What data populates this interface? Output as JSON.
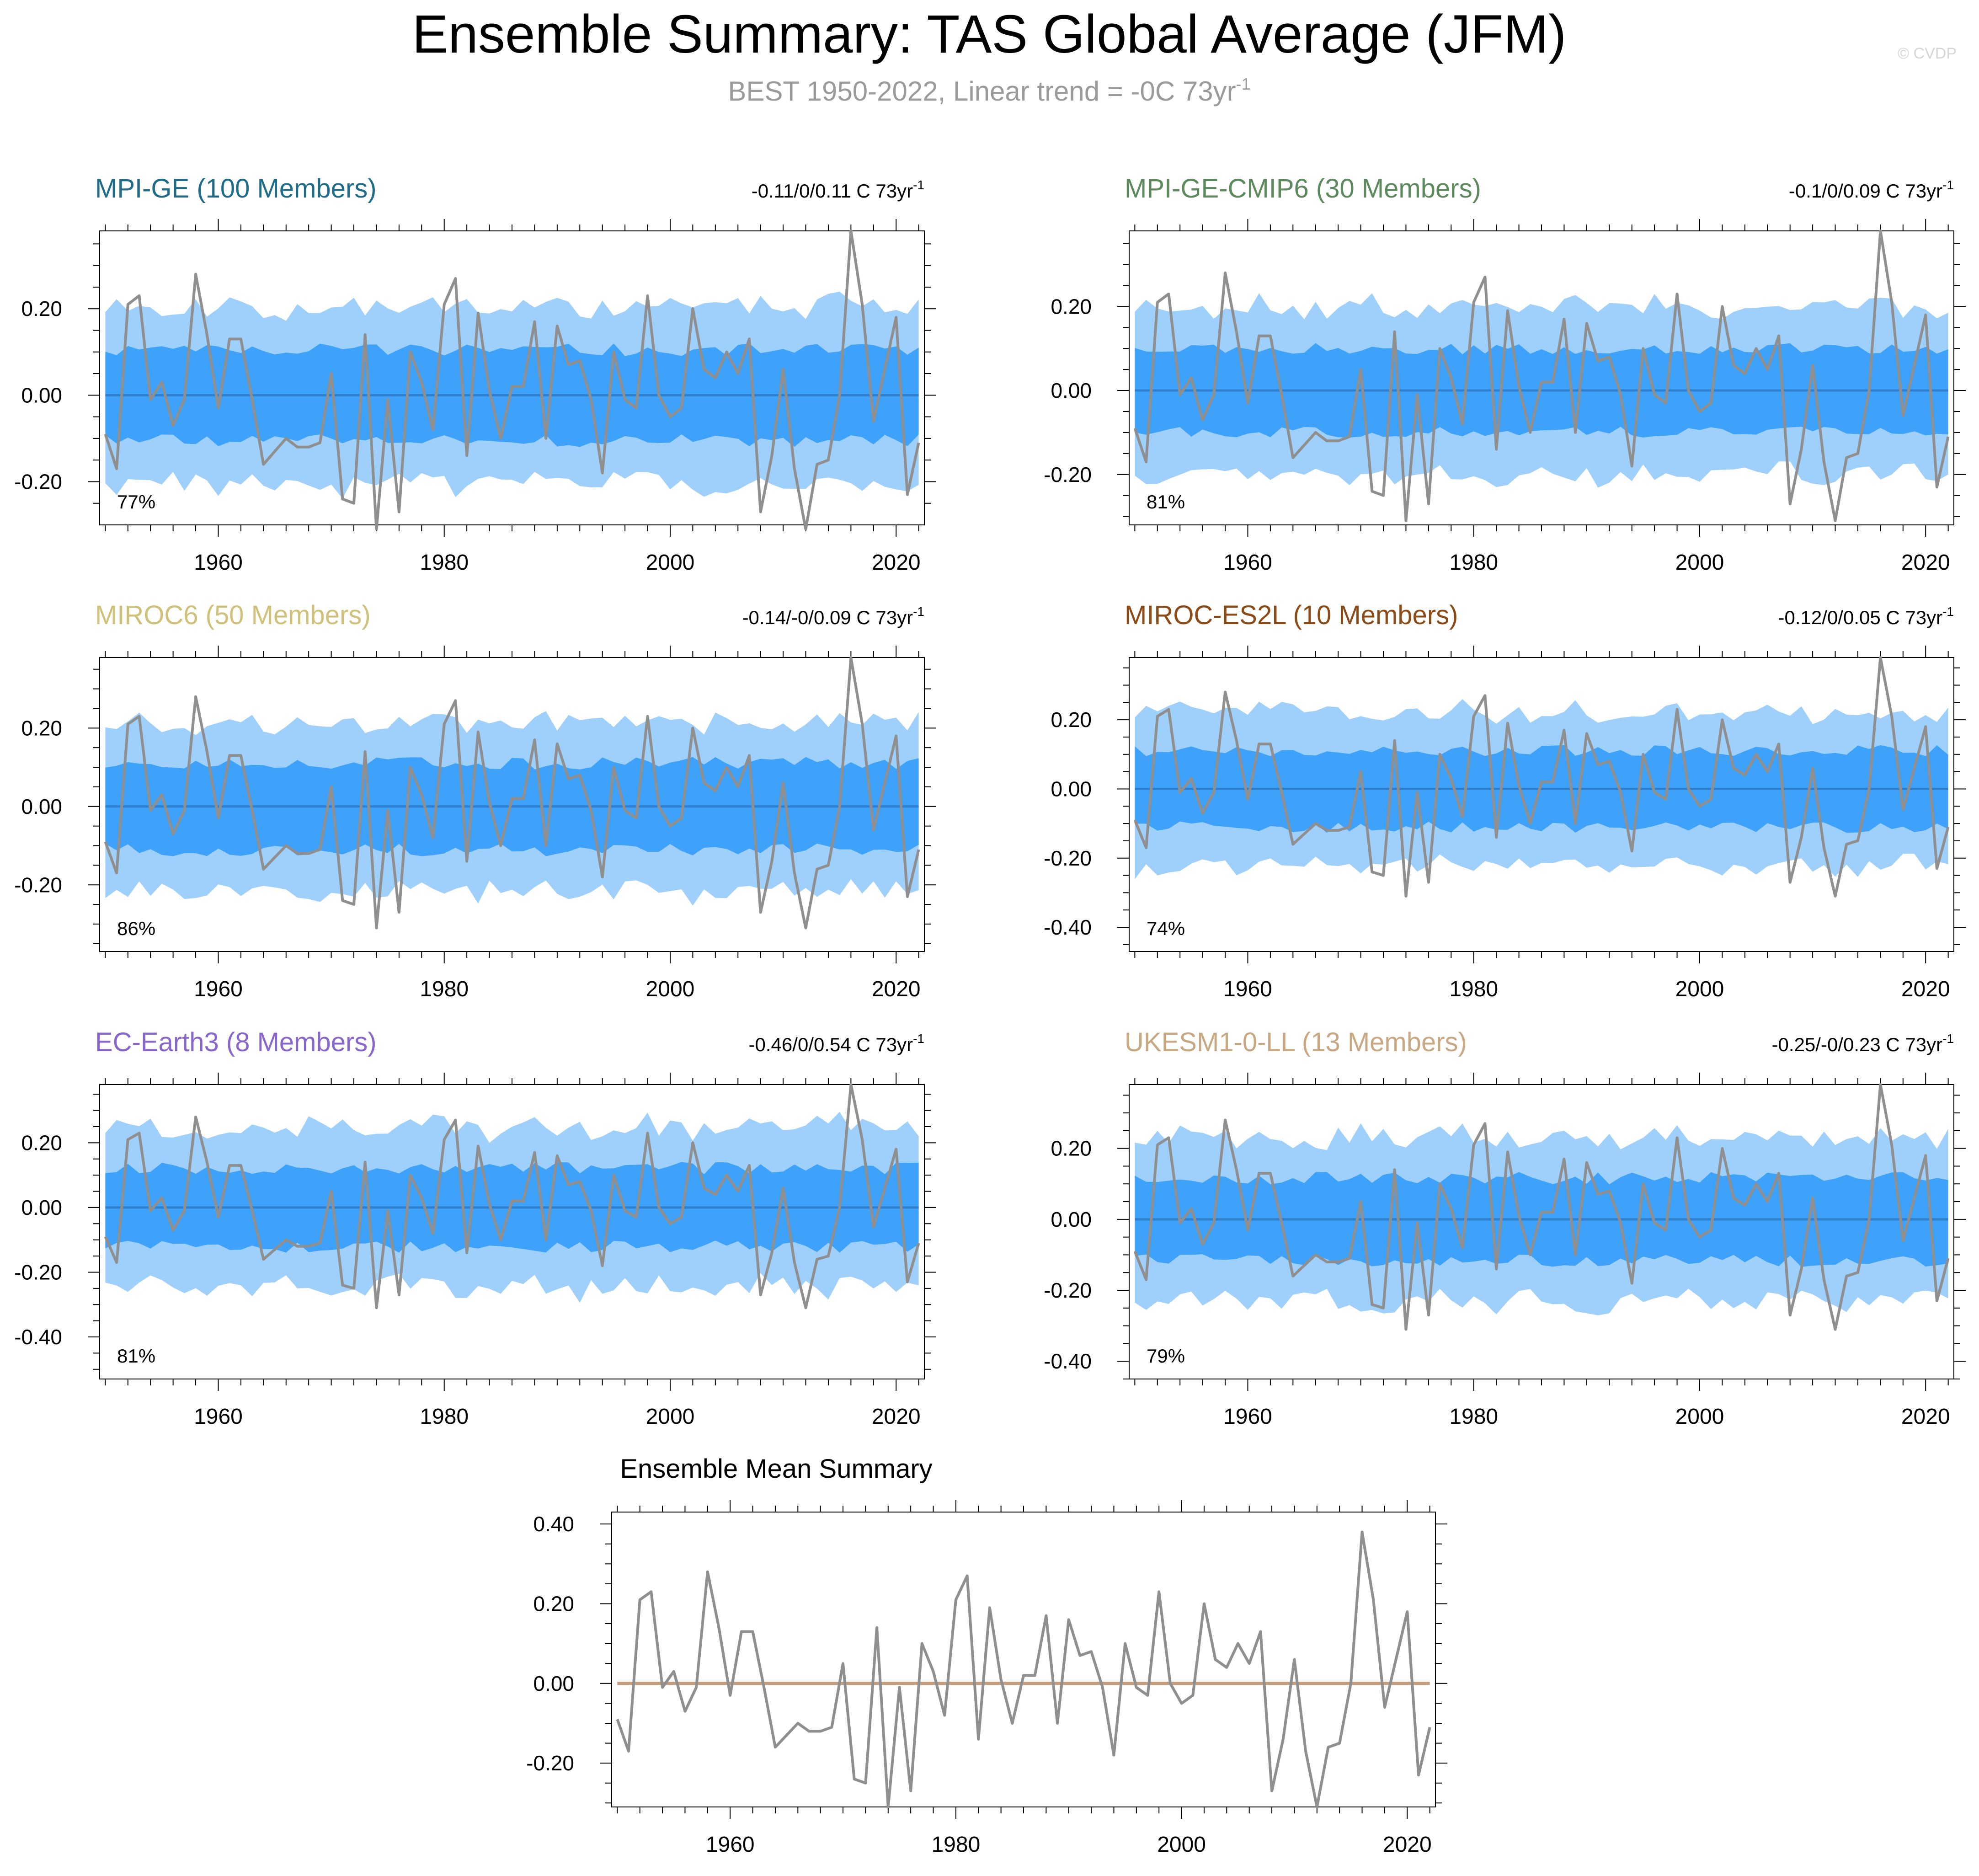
{
  "title": "Ensemble Summary: TAS Global Average (JFM)",
  "subtitle": "BEST 1950-2022, Linear trend = -0C 73yr",
  "subtitle_sup": "-1",
  "watermark": "© CVDP",
  "colors": {
    "outer_band": "#9fd0fc",
    "inner_band": "#3ea2fb",
    "ensemble_line": "#2f7fcf",
    "observed": "#8f8f8f",
    "mean_line": "#c49c7c"
  },
  "observed": {
    "name": "BEST",
    "years": [
      1950,
      1951,
      1952,
      1953,
      1954,
      1955,
      1956,
      1957,
      1958,
      1959,
      1960,
      1961,
      1962,
      1963,
      1964,
      1965,
      1966,
      1967,
      1968,
      1969,
      1970,
      1971,
      1972,
      1973,
      1974,
      1975,
      1976,
      1977,
      1978,
      1979,
      1980,
      1981,
      1982,
      1983,
      1984,
      1985,
      1986,
      1987,
      1988,
      1989,
      1990,
      1991,
      1992,
      1993,
      1994,
      1995,
      1996,
      1997,
      1998,
      1999,
      2000,
      2001,
      2002,
      2003,
      2004,
      2005,
      2006,
      2007,
      2008,
      2009,
      2010,
      2011,
      2012,
      2013,
      2014,
      2015,
      2016,
      2017,
      2018,
      2019,
      2020,
      2021,
      2022
    ],
    "values": [
      -0.09,
      -0.17,
      0.21,
      0.23,
      -0.01,
      0.03,
      -0.07,
      -0.01,
      0.28,
      0.14,
      -0.03,
      0.13,
      0.13,
      -0.01,
      -0.16,
      -0.13,
      -0.1,
      -0.12,
      -0.12,
      -0.11,
      0.05,
      -0.24,
      -0.25,
      0.14,
      -0.31,
      -0.01,
      -0.27,
      0.1,
      0.03,
      -0.08,
      0.21,
      0.27,
      -0.14,
      0.19,
      0.01,
      -0.1,
      0.02,
      0.02,
      0.17,
      -0.1,
      0.16,
      0.07,
      0.08,
      -0.01,
      -0.18,
      0.1,
      -0.01,
      -0.03,
      0.23,
      0.0,
      -0.05,
      -0.03,
      0.2,
      0.06,
      0.04,
      0.1,
      0.05,
      0.13,
      -0.27,
      -0.14,
      0.06,
      -0.17,
      -0.31,
      -0.16,
      -0.15,
      0.0,
      0.38,
      0.21,
      -0.06,
      0.06,
      0.18,
      -0.23,
      -0.11
    ]
  },
  "panels": [
    {
      "id": "mpi-ge",
      "title": "MPI-GE (100 Members)",
      "title_color": "#1e6b8a",
      "trend": "-0.11/0/0.11 C 73yr",
      "trend_sup": "-1",
      "percent": "77%",
      "ylim": [
        -0.3,
        0.38
      ],
      "yticks": [
        -0.2,
        0,
        0.2
      ],
      "ytick_labels": [
        "-0.20",
        "0.00",
        "0.20"
      ],
      "p10": 0.1,
      "p25": 0.05,
      "seed": 11
    },
    {
      "id": "mpi-ge-cmip6",
      "title": "MPI-GE-CMIP6 (30 Members)",
      "title_color": "#5c8a5c",
      "trend": "-0.1/0/0.09 C 73yr",
      "trend_sup": "-1",
      "percent": "81%",
      "ylim": [
        -0.32,
        0.38
      ],
      "yticks": [
        -0.2,
        0,
        0.2
      ],
      "ytick_labels": [
        "-0.20",
        "0.00",
        "0.20"
      ],
      "p10": 0.095,
      "p25": 0.045,
      "seed": 23
    },
    {
      "id": "miroc6",
      "title": "MIROC6 (50 Members)",
      "title_color": "#cfc07a",
      "trend": "-0.14/-0/0.09 C 73yr",
      "trend_sup": "-1",
      "percent": "86%",
      "ylim": [
        -0.37,
        0.38
      ],
      "yticks": [
        -0.2,
        0,
        0.2
      ],
      "ytick_labels": [
        "-0.20",
        "0.00",
        "0.20"
      ],
      "p10": 0.11,
      "p25": 0.055,
      "seed": 37
    },
    {
      "id": "miroc-es2l",
      "title": "MIROC-ES2L (10 Members)",
      "title_color": "#8b4a16",
      "trend": "-0.12/0/0.05 C 73yr",
      "trend_sup": "-1",
      "percent": "74%",
      "ylim": [
        -0.47,
        0.38
      ],
      "yticks": [
        -0.4,
        -0.2,
        0,
        0.2
      ],
      "ytick_labels": [
        "-0.40",
        "-0.20",
        "0.00",
        "0.20"
      ],
      "p10": 0.115,
      "p25": 0.055,
      "seed": 41
    },
    {
      "id": "ec-earth3",
      "title": "EC-Earth3 (8 Members)",
      "title_color": "#8866cc",
      "trend": "-0.46/0/0.54 C 73yr",
      "trend_sup": "-1",
      "percent": "81%",
      "ylim": [
        -0.53,
        0.38
      ],
      "yticks": [
        -0.4,
        -0.2,
        0,
        0.2
      ],
      "ytick_labels": [
        "-0.40",
        "-0.20",
        "0.00",
        "0.20"
      ],
      "p10": 0.14,
      "p25": 0.065,
      "seed": 53
    },
    {
      "id": "ukesm1-0-ll",
      "title": "UKESM1-0-LL (13 Members)",
      "title_color": "#c8a882",
      "trend": "-0.25/-0/0.23 C 73yr",
      "trend_sup": "-1",
      "percent": "79%",
      "ylim": [
        -0.45,
        0.38
      ],
      "yticks": [
        -0.4,
        -0.2,
        0,
        0.2
      ],
      "ytick_labels": [
        "-0.40",
        "-0.20",
        "0.00",
        "0.20"
      ],
      "p10": 0.125,
      "p25": 0.06,
      "seed": 67
    }
  ],
  "mean_panel": {
    "title": "Ensemble Mean Summary",
    "ylim": [
      -0.31,
      0.43
    ],
    "yticks": [
      -0.2,
      0,
      0.2,
      0.4
    ],
    "ytick_labels": [
      "-0.20",
      "0.00",
      "0.20",
      "0.40"
    ],
    "mean_value": 0.0
  },
  "xlim": [
    1949.5,
    2022.5
  ],
  "xticks": [
    1960,
    1980,
    2000,
    2020
  ],
  "xtick_labels": [
    "1960",
    "1980",
    "2000",
    "2020"
  ]
}
